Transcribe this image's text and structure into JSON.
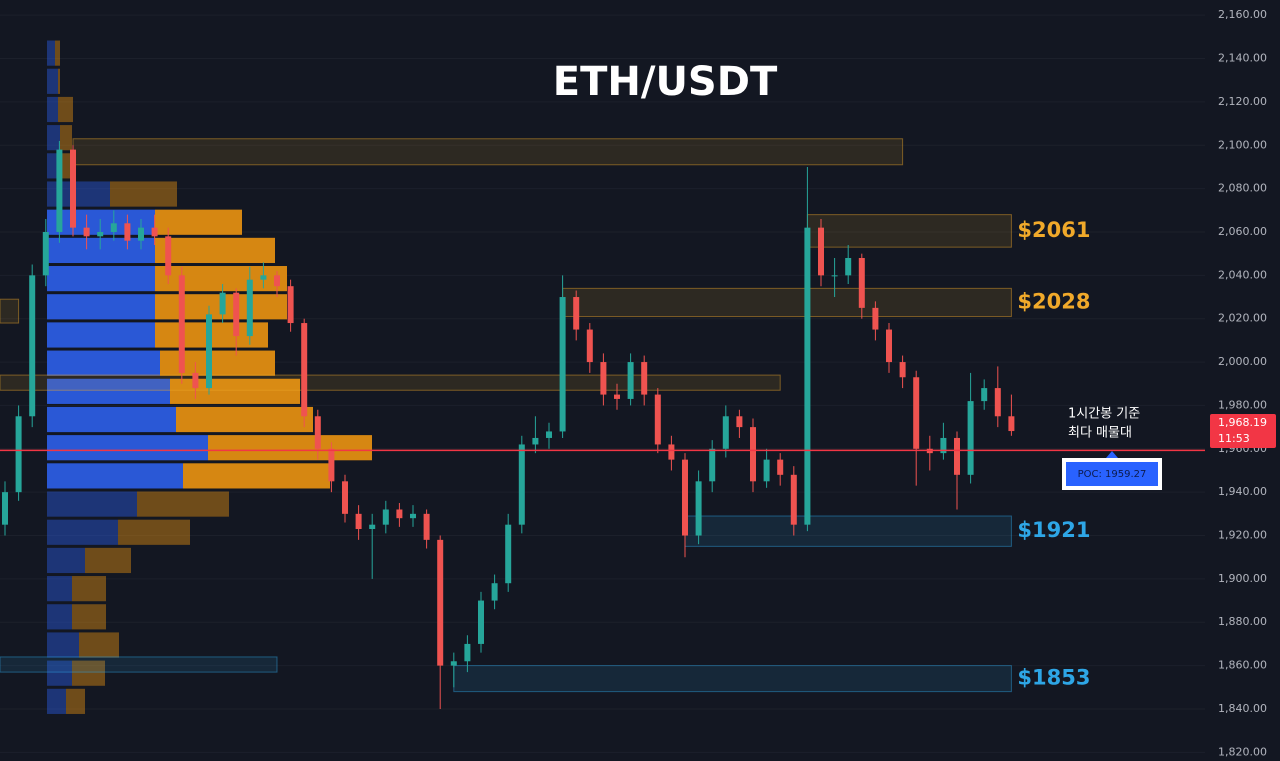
{
  "chart_data": {
    "type": "candlestick",
    "title": "ETH/USDT",
    "up_color": "#26a69a",
    "down_color": "#ef5350",
    "ylim": [
      1816,
      2167
    ],
    "yticks": [
      {
        "value": 1820,
        "label": "1,820.00"
      },
      {
        "value": 1840,
        "label": "1,840.00"
      },
      {
        "value": 1860,
        "label": "1,860.00"
      },
      {
        "value": 1880,
        "label": "1,880.00"
      },
      {
        "value": 1900,
        "label": "1,900.00"
      },
      {
        "value": 1920,
        "label": "1,920.00"
      },
      {
        "value": 1940,
        "label": "1,940.00"
      },
      {
        "value": 1960,
        "label": "1,960.00"
      },
      {
        "value": 1980,
        "label": "1,980.00"
      },
      {
        "value": 2000,
        "label": "2,000.00"
      },
      {
        "value": 2020,
        "label": "2,020.00"
      },
      {
        "value": 2040,
        "label": "2,040.00"
      },
      {
        "value": 2060,
        "label": "2,060.00"
      },
      {
        "value": 2080,
        "label": "2,080.00"
      },
      {
        "value": 2100,
        "label": "2,100.00"
      },
      {
        "value": 2120,
        "label": "2,120.00"
      },
      {
        "value": 2140,
        "label": "2,140.00"
      },
      {
        "value": 2160,
        "label": "2,160.00"
      }
    ],
    "grid": true,
    "candles": [
      [
        1925,
        1945,
        1920,
        1940
      ],
      [
        1940,
        1980,
        1936,
        1975
      ],
      [
        1975,
        2045,
        1970,
        2040
      ],
      [
        2040,
        2066,
        2035,
        2060
      ],
      [
        2060,
        2102,
        2055,
        2098
      ],
      [
        2098,
        2100,
        2058,
        2062
      ],
      [
        2062,
        2068,
        2052,
        2058
      ],
      [
        2058,
        2066,
        2052,
        2060
      ],
      [
        2060,
        2070,
        2056,
        2064
      ],
      [
        2064,
        2068,
        2052,
        2056
      ],
      [
        2056,
        2066,
        2052,
        2062
      ],
      [
        2062,
        2068,
        2054,
        2058
      ],
      [
        2058,
        2062,
        2036,
        2040
      ],
      [
        2040,
        2044,
        1990,
        1995
      ],
      [
        1995,
        2000,
        1983,
        1988
      ],
      [
        1988,
        2026,
        1985,
        2022
      ],
      [
        2022,
        2036,
        2018,
        2032
      ],
      [
        2032,
        2034,
        2003,
        2012
      ],
      [
        2012,
        2044,
        2008,
        2038
      ],
      [
        2038,
        2046,
        2034,
        2040
      ],
      [
        2040,
        2042,
        2030,
        2035
      ],
      [
        2035,
        2038,
        2014,
        2018
      ],
      [
        2018,
        2020,
        1970,
        1975
      ],
      [
        1975,
        1978,
        1955,
        1960
      ],
      [
        1960,
        1963,
        1940,
        1945
      ],
      [
        1945,
        1948,
        1926,
        1930
      ],
      [
        1930,
        1934,
        1918,
        1923
      ],
      [
        1923,
        1930,
        1900,
        1925
      ],
      [
        1925,
        1936,
        1921,
        1932
      ],
      [
        1932,
        1935,
        1924,
        1928
      ],
      [
        1928,
        1934,
        1924,
        1930
      ],
      [
        1930,
        1932,
        1914,
        1918
      ],
      [
        1918,
        1920,
        1840,
        1860
      ],
      [
        1860,
        1866,
        1850,
        1862
      ],
      [
        1862,
        1874,
        1857,
        1870
      ],
      [
        1870,
        1894,
        1866,
        1890
      ],
      [
        1890,
        1902,
        1886,
        1898
      ],
      [
        1898,
        1930,
        1894,
        1925
      ],
      [
        1925,
        1966,
        1921,
        1962
      ],
      [
        1962,
        1975,
        1958,
        1965
      ],
      [
        1965,
        1972,
        1960,
        1968
      ],
      [
        1968,
        2040,
        1965,
        2030
      ],
      [
        2030,
        2033,
        2010,
        2015
      ],
      [
        2015,
        2018,
        1995,
        2000
      ],
      [
        2000,
        2004,
        1980,
        1985
      ],
      [
        1985,
        1990,
        1978,
        1983
      ],
      [
        1983,
        2004,
        1980,
        2000
      ],
      [
        2000,
        2003,
        1980,
        1985
      ],
      [
        1985,
        1988,
        1958,
        1962
      ],
      [
        1962,
        1966,
        1950,
        1955
      ],
      [
        1955,
        1958,
        1910,
        1920
      ],
      [
        1920,
        1950,
        1916,
        1945
      ],
      [
        1945,
        1964,
        1940,
        1960
      ],
      [
        1960,
        1980,
        1956,
        1975
      ],
      [
        1975,
        1978,
        1965,
        1970
      ],
      [
        1970,
        1974,
        1940,
        1945
      ],
      [
        1945,
        1960,
        1942,
        1955
      ],
      [
        1955,
        1958,
        1943,
        1948
      ],
      [
        1948,
        1952,
        1920,
        1925
      ],
      [
        1925,
        2090,
        1922,
        2062
      ],
      [
        2062,
        2066,
        2035,
        2040
      ],
      [
        2040,
        2048,
        2030,
        2040
      ],
      [
        2040,
        2054,
        2036,
        2048
      ],
      [
        2048,
        2050,
        2020,
        2025
      ],
      [
        2025,
        2028,
        2010,
        2015
      ],
      [
        2015,
        2018,
        1995,
        2000
      ],
      [
        2000,
        2003,
        1988,
        1993
      ],
      [
        1993,
        1996,
        1943,
        1960
      ],
      [
        1960,
        1966,
        1950,
        1958
      ],
      [
        1958,
        1972,
        1955,
        1965
      ],
      [
        1965,
        1968,
        1932,
        1948
      ],
      [
        1948,
        1995,
        1944,
        1982
      ],
      [
        1982,
        1992,
        1978,
        1988
      ],
      [
        1988,
        1998,
        1970,
        1975
      ],
      [
        1975,
        1985,
        1966,
        1968.19
      ]
    ],
    "profile": {
      "levels": [
        1837,
        1850,
        1863,
        1876,
        1889,
        1902,
        1915,
        1928,
        1941,
        1954,
        1967,
        1980,
        1993,
        2006,
        2019,
        2032,
        2045,
        2058,
        2071,
        2084,
        2097,
        2110,
        2123,
        2136
      ],
      "buy": [
        19,
        25,
        32,
        25,
        25,
        38,
        71,
        90,
        136,
        161,
        129,
        123,
        113,
        108,
        108,
        108,
        108,
        108,
        63,
        13,
        13,
        11,
        11,
        8
      ],
      "sell": [
        19,
        33,
        40,
        34,
        34,
        46,
        72,
        92,
        147,
        164,
        137,
        130,
        115,
        113,
        132,
        132,
        120,
        87,
        67,
        10,
        12,
        15,
        2,
        5
      ],
      "value_area": [
        1941,
        2058
      ],
      "buy_color": "#2b5ce0",
      "sell_color": "#e08d12"
    },
    "zones": [
      {
        "top": 2068,
        "bottom": 2053,
        "start": 59,
        "end": 74,
        "label": "$2061",
        "color": "#f0a92a"
      },
      {
        "top": 2034,
        "bottom": 2021,
        "start": 41,
        "end": 74,
        "label": "$2028",
        "color": "#f0a92a"
      },
      {
        "top": 1929,
        "bottom": 1915,
        "start": 50,
        "end": 74,
        "label": "$1921",
        "color": "#2ea6e6"
      },
      {
        "top": 1860,
        "bottom": 1848,
        "start": 33,
        "end": 74,
        "label": "$1853",
        "color": "#2ea6e6"
      },
      {
        "top": 2103,
        "bottom": 2091,
        "start": 5,
        "end": 66,
        "color": "#f0a92a"
      },
      {
        "top": 1994,
        "bottom": 1987,
        "start": -1,
        "end": 57,
        "color": "#f0a92a"
      },
      {
        "top": 2029,
        "bottom": 2018,
        "start": -1,
        "end": 1,
        "color": "#f0a92a"
      },
      {
        "top": 1864,
        "bottom": 1857,
        "start": -1,
        "end": 20,
        "color": "#2ea6e6"
      }
    ],
    "poc": 1959.27,
    "poc_label": "POC: 1959.27",
    "last_price": {
      "value": 1968.19,
      "label": "1,968.19"
    },
    "countdown": "11:53",
    "annotation": [
      "1시간봉 기준",
      "최다 매물대"
    ]
  }
}
